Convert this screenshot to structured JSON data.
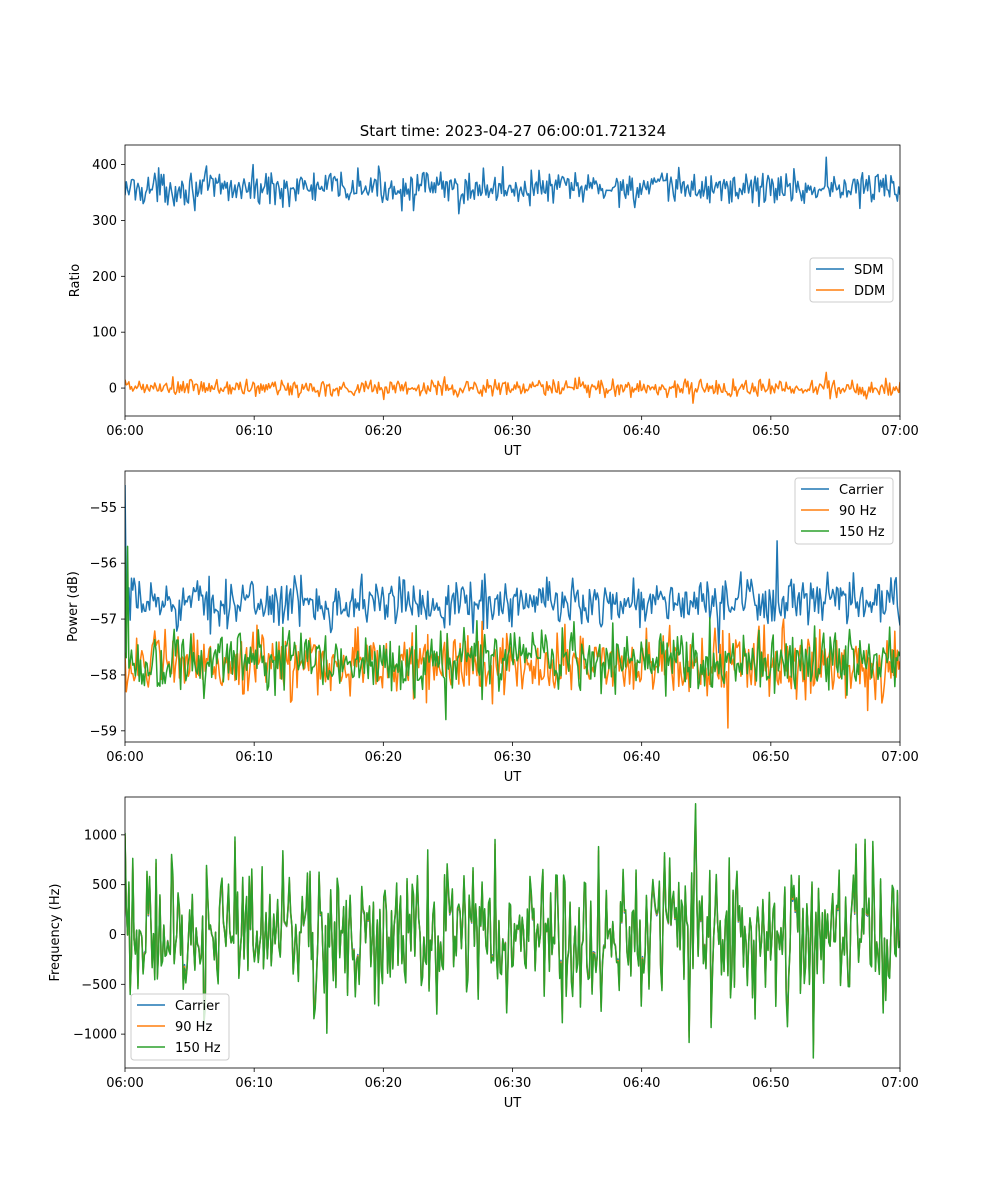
{
  "title": "Start time: 2023-04-27 06:00:01.721324",
  "colors": {
    "blue": "#1f77b4",
    "orange": "#ff7f0e",
    "green": "#2ca02c"
  },
  "chart_data": [
    {
      "type": "line",
      "xlabel": "UT",
      "ylabel": "Ratio",
      "xlim": [
        "06:00",
        "07:00"
      ],
      "ylim": [
        -50,
        435
      ],
      "xticks": [
        "06:00",
        "06:10",
        "06:20",
        "06:30",
        "06:40",
        "06:50",
        "07:00"
      ],
      "yticks": [
        0,
        100,
        200,
        300,
        400
      ],
      "legend_loc": "center-right",
      "grid": false,
      "series": [
        {
          "name": "SDM",
          "color": "#1f77b4",
          "x_start": "06:00",
          "x_end": "07:00",
          "n_points": 600,
          "mean": 358,
          "spread_min": 312,
          "spread_max": 413,
          "first": 345,
          "peak_at": "06:54:20",
          "peak": 413,
          "trough_at": "06:25:50",
          "trough": 312
        },
        {
          "name": "DDM",
          "color": "#ff7f0e",
          "x_start": "06:00",
          "x_end": "07:00",
          "n_points": 600,
          "mean": 0,
          "spread_min": -27,
          "spread_max": 28,
          "first": 15,
          "peak_at": "06:54:15",
          "peak": 28,
          "trough_at": "06:44:00",
          "trough": -27
        }
      ]
    },
    {
      "type": "line",
      "xlabel": "UT",
      "ylabel": "Power (dB)",
      "xlim": [
        "06:00",
        "07:00"
      ],
      "ylim": [
        -59.2,
        -54.35
      ],
      "xticks": [
        "06:00",
        "06:10",
        "06:20",
        "06:30",
        "06:40",
        "06:50",
        "07:00"
      ],
      "yticks": [
        -59,
        -58,
        -57,
        -56,
        -55
      ],
      "legend_loc": "top-right",
      "grid": false,
      "series": [
        {
          "name": "Carrier",
          "color": "#1f77b4",
          "x_start": "06:00",
          "x_end": "07:00",
          "n_points": 600,
          "mean": -56.7,
          "spread_min": -57.4,
          "spread_max": -56.0,
          "first": -54.6,
          "peak_at": "06:50:30",
          "peak": -55.6,
          "trough_at": "06:46:00",
          "trough": -57.6
        },
        {
          "name": "90 Hz",
          "color": "#ff7f0e",
          "x_start": "06:00",
          "x_end": "07:00",
          "n_points": 600,
          "mean": -57.8,
          "spread_min": -58.9,
          "spread_max": -57.0,
          "first": -57.6,
          "peak_at": "06:51:00",
          "peak": -57.0,
          "trough_at": "06:46:40",
          "trough": -58.95
        },
        {
          "name": "150 Hz",
          "color": "#2ca02c",
          "x_start": "06:00",
          "x_end": "07:00",
          "n_points": 600,
          "mean": -57.75,
          "spread_min": -58.8,
          "spread_max": -57.0,
          "first": -55.7,
          "peak_at": "06:00:15",
          "peak": -55.7,
          "trough_at": "06:24:50",
          "trough": -58.8
        }
      ]
    },
    {
      "type": "line",
      "xlabel": "UT",
      "ylabel": "Frequency (Hz)",
      "xlim": [
        "06:00",
        "07:00"
      ],
      "ylim": [
        -1340,
        1380
      ],
      "xticks": [
        "06:00",
        "06:10",
        "06:20",
        "06:30",
        "06:40",
        "06:50",
        "07:00"
      ],
      "yticks": [
        -1000,
        -500,
        0,
        500,
        1000
      ],
      "legend_loc": "bottom-left",
      "grid": false,
      "series": [
        {
          "name": "Carrier",
          "color": "#1f77b4",
          "x_start": "06:00",
          "x_end": "07:00",
          "n_points": 600,
          "mean": -40,
          "spread_min": -1230,
          "spread_max": 1230,
          "first": 980,
          "peak_at": "06:44:10",
          "peak": 1230,
          "trough_at": "06:53:20",
          "trough": -1230
        },
        {
          "name": "90 Hz",
          "color": "#ff7f0e",
          "x_start": "06:00",
          "x_end": "07:00",
          "n_points": 600,
          "mean": 0,
          "spread_min": -1180,
          "spread_max": 1250,
          "first": 1000,
          "peak_at": "06:44:10",
          "peak": 1250,
          "trough_at": "06:53:20",
          "trough": -1180
        },
        {
          "name": "150 Hz",
          "color": "#2ca02c",
          "x_start": "06:00",
          "x_end": "07:00",
          "n_points": 600,
          "mean": 30,
          "spread_min": -1140,
          "spread_max": 1280,
          "first": 1020,
          "peak_at": "06:44:10",
          "peak": 1280,
          "trough_at": "06:53:20",
          "trough": -1140
        }
      ]
    }
  ]
}
